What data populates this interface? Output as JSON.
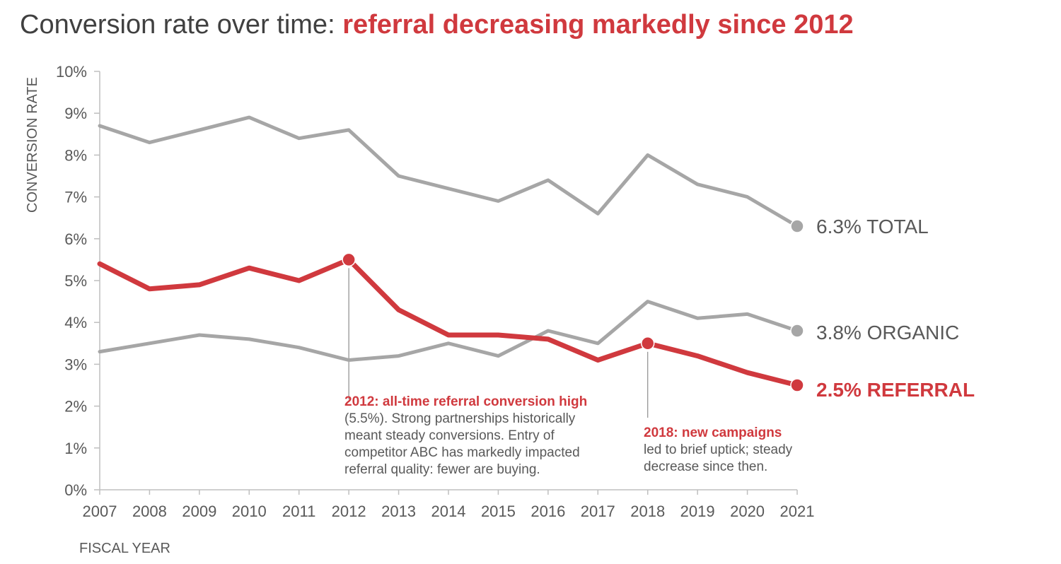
{
  "title": {
    "plain": "Conversion rate over time: ",
    "emphasis": "referral decreasing markedly since 2012"
  },
  "colors": {
    "accent": "#d0393e",
    "muted": "#a6a6a6",
    "text": "#595959"
  },
  "chart_data": {
    "type": "line",
    "xlabel": "FISCAL YEAR",
    "ylabel": "CONVERSION RATE",
    "ylim": [
      0,
      10
    ],
    "y_ticks": [
      "0%",
      "1%",
      "2%",
      "3%",
      "4%",
      "5%",
      "6%",
      "7%",
      "8%",
      "9%",
      "10%"
    ],
    "x": [
      "2007",
      "2008",
      "2009",
      "2010",
      "2011",
      "2012",
      "2013",
      "2014",
      "2015",
      "2016",
      "2017",
      "2018",
      "2019",
      "2020",
      "2021"
    ],
    "grid": false,
    "series": [
      {
        "name": "TOTAL",
        "end_label": "6.3% TOTAL",
        "color": "#a6a6a6",
        "values": [
          8.7,
          8.3,
          8.6,
          8.9,
          8.4,
          8.6,
          7.5,
          7.2,
          6.9,
          7.4,
          6.6,
          8.0,
          7.3,
          7.0,
          6.3
        ]
      },
      {
        "name": "ORGANIC",
        "end_label": "3.8% ORGANIC",
        "color": "#a6a6a6",
        "values": [
          3.3,
          3.5,
          3.7,
          3.6,
          3.4,
          3.1,
          3.2,
          3.5,
          3.2,
          3.8,
          3.5,
          4.5,
          4.1,
          4.2,
          3.8
        ]
      },
      {
        "name": "REFERRAL",
        "end_label": "2.5% REFERRAL",
        "color": "#d0393e",
        "values": [
          5.4,
          4.8,
          4.9,
          5.3,
          5.0,
          5.5,
          4.3,
          3.7,
          3.7,
          3.6,
          3.1,
          3.5,
          3.2,
          2.8,
          2.5
        ]
      }
    ],
    "annotations": [
      {
        "year": "2012",
        "value": 5.5,
        "heading": "2012: all-time referral conversion high",
        "lines": [
          "(5.5%). Strong partnerships historically",
          "meant steady conversions. Entry of",
          "competitor ABC has markedly impacted",
          "referral quality: fewer are buying."
        ]
      },
      {
        "year": "2018",
        "value": 3.5,
        "heading": "2018: new campaigns",
        "lines": [
          "led to brief uptick; steady",
          "decrease since then."
        ]
      }
    ]
  }
}
